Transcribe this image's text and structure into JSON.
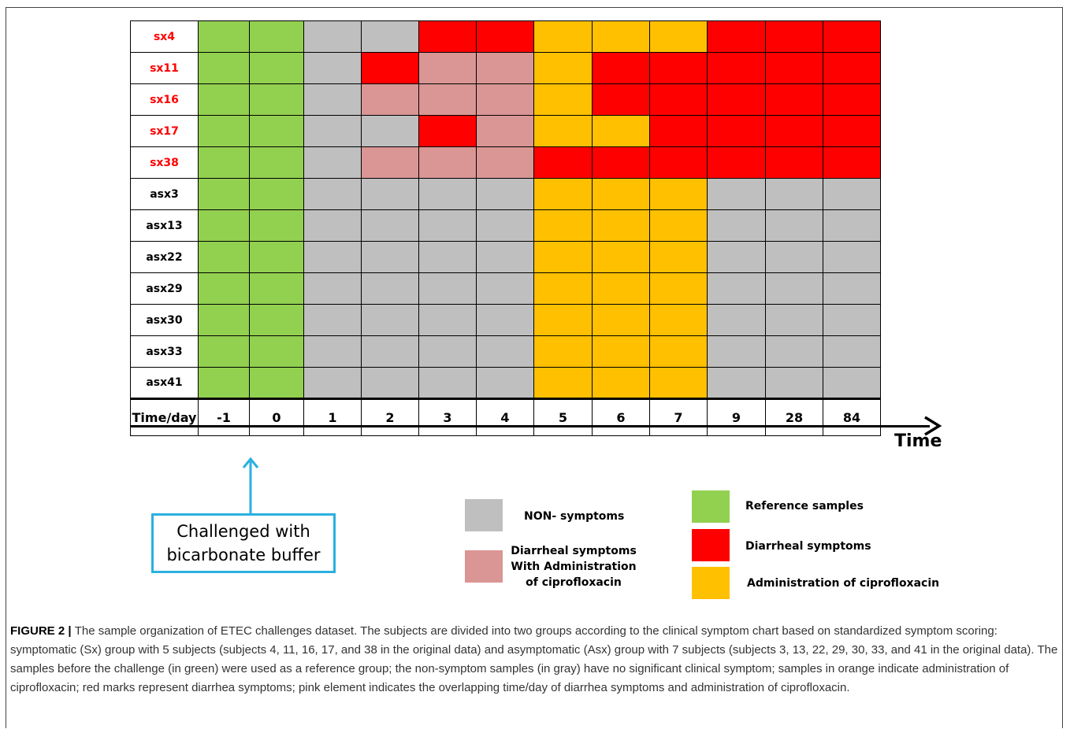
{
  "rows": [
    {
      "label": "sx4",
      "group": "sx",
      "cells": [
        "g",
        "g",
        "x",
        "x",
        "r",
        "r",
        "o",
        "o",
        "o",
        "r",
        "r",
        "r"
      ]
    },
    {
      "label": "sx11",
      "group": "sx",
      "cells": [
        "g",
        "g",
        "x",
        "r",
        "p",
        "p",
        "o",
        "r",
        "r",
        "r",
        "r",
        "r"
      ]
    },
    {
      "label": "sx16",
      "group": "sx",
      "cells": [
        "g",
        "g",
        "x",
        "p",
        "p",
        "p",
        "o",
        "r",
        "r",
        "r",
        "r",
        "r"
      ]
    },
    {
      "label": "sx17",
      "group": "sx",
      "cells": [
        "g",
        "g",
        "x",
        "x",
        "r",
        "p",
        "o",
        "o",
        "r",
        "r",
        "r",
        "r"
      ]
    },
    {
      "label": "sx38",
      "group": "sx",
      "cells": [
        "g",
        "g",
        "x",
        "p",
        "p",
        "p",
        "r",
        "r",
        "r",
        "r",
        "r",
        "r"
      ]
    },
    {
      "label": "asx3",
      "group": "asx",
      "cells": [
        "g",
        "g",
        "x",
        "x",
        "x",
        "x",
        "o",
        "o",
        "o",
        "x",
        "x",
        "x"
      ]
    },
    {
      "label": "asx13",
      "group": "asx",
      "cells": [
        "g",
        "g",
        "x",
        "x",
        "x",
        "x",
        "o",
        "o",
        "o",
        "x",
        "x",
        "x"
      ]
    },
    {
      "label": "asx22",
      "group": "asx",
      "cells": [
        "g",
        "g",
        "x",
        "x",
        "x",
        "x",
        "o",
        "o",
        "o",
        "x",
        "x",
        "x"
      ]
    },
    {
      "label": "asx29",
      "group": "asx",
      "cells": [
        "g",
        "g",
        "x",
        "x",
        "x",
        "x",
        "o",
        "o",
        "o",
        "x",
        "x",
        "x"
      ]
    },
    {
      "label": "asx30",
      "group": "asx",
      "cells": [
        "g",
        "g",
        "x",
        "x",
        "x",
        "x",
        "o",
        "o",
        "o",
        "x",
        "x",
        "x"
      ]
    },
    {
      "label": "asx33",
      "group": "asx",
      "cells": [
        "g",
        "g",
        "x",
        "x",
        "x",
        "x",
        "o",
        "o",
        "o",
        "x",
        "x",
        "x"
      ]
    },
    {
      "label": "asx41",
      "group": "asx",
      "cells": [
        "g",
        "g",
        "x",
        "x",
        "x",
        "x",
        "o",
        "o",
        "o",
        "x",
        "x",
        "x"
      ]
    }
  ],
  "time_header": "Time/day",
  "days": [
    "-1",
    "0",
    "1",
    "2",
    "3",
    "4",
    "5",
    "6",
    "7",
    "9",
    "28",
    "84"
  ],
  "axis_label": "Time",
  "challenge": {
    "line1": "Challenged  with",
    "line2": "bicarbonate buffer"
  },
  "legend": {
    "non_symptoms": "NON- symptoms",
    "diarrheal_with_admin_1": "Diarrheal symptoms",
    "diarrheal_with_admin_2": "With Administration",
    "diarrheal_with_admin_3": "of ciprofloxacin",
    "reference": "Reference samples",
    "diarrheal": "Diarrheal symptoms",
    "administration": "Administration of ciprofloxacin"
  },
  "colors": {
    "reference": "#92d050",
    "non_symptom": "#bfbfbf",
    "diarrheal": "#ff0000",
    "administration": "#ffc000",
    "overlap": "#d99694",
    "sx_label": "#ff0000",
    "challenge_box": "#2ab0e0"
  },
  "caption": {
    "figno": "FIGURE 2",
    "bar": " | ",
    "text": "The sample organization of ETEC challenges dataset. The subjects are divided into two groups according to the clinical symptom chart based on standardized symptom scoring: symptomatic (Sx) group with 5 subjects (subjects 4, 11, 16, 17, and 38 in the original data) and asymptomatic (Asx) group with 7 subjects (subjects 3, 13, 22, 29, 30, 33, and 41 in the original data). The samples before the challenge (in green) were used as a reference group; the non-symptom samples (in gray) have no significant clinical symptom; samples in orange indicate administration of ciprofloxacin; red marks represent diarrhea symptoms; pink element indicates the overlapping time/day of diarrhea symptoms and administration of ciprofloxacin."
  }
}
